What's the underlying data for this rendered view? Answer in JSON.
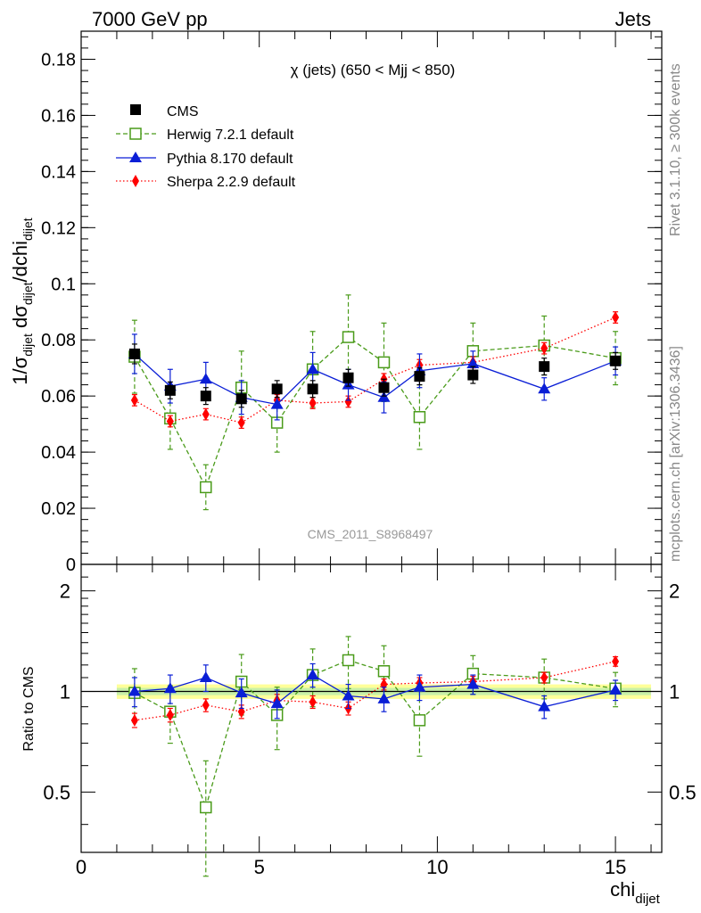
{
  "header": {
    "left": "7000 GeV pp",
    "right": "Jets"
  },
  "side_labels": {
    "rivet": "Rivet 3.1.10, ≥ 300k events",
    "mcplots": "mcplots.cern.ch [arXiv:1306.3436]"
  },
  "chart_data": {
    "type": "scatter",
    "title": "χ (jets) (650 < Mjj <  850)",
    "watermark": "CMS_2011_S8968497",
    "xlabel": "chi",
    "xlabel_sub": "dijet",
    "ylabel": "1/σ_dijet dσ_dijet/dchi_dijet",
    "ratio_ylabel": "Ratio to CMS",
    "xlim": [
      0,
      16.3
    ],
    "ylim": [
      0,
      0.19
    ],
    "ratio_ylim": [
      0.33,
      2.4
    ],
    "ratio_scale": "log",
    "x_ticks": [
      "0",
      "5",
      "10",
      "15"
    ],
    "y_ticks": [
      "0",
      "0.02",
      "0.04",
      "0.06",
      "0.08",
      "0.1",
      "0.12",
      "0.14",
      "0.16",
      "0.18"
    ],
    "ratio_ticks": [
      "0.5",
      "1",
      "2"
    ],
    "legend_position": "top-left",
    "bins": [
      [
        1,
        2
      ],
      [
        2,
        3
      ],
      [
        3,
        4
      ],
      [
        4,
        5
      ],
      [
        5,
        6
      ],
      [
        6,
        7
      ],
      [
        7,
        8
      ],
      [
        8,
        9
      ],
      [
        9,
        10
      ],
      [
        10,
        12
      ],
      [
        12,
        14
      ],
      [
        14,
        16
      ]
    ],
    "x": [
      1.5,
      2.5,
      3.5,
      4.5,
      5.5,
      6.5,
      7.5,
      8.5,
      9.5,
      11,
      13,
      15
    ],
    "series": [
      {
        "name": "CMS",
        "color": "#000000",
        "marker": "square-filled",
        "values": [
          0.075,
          0.062,
          0.06,
          0.059,
          0.0625,
          0.0625,
          0.0665,
          0.063,
          0.067,
          0.0675,
          0.0705,
          0.0725
        ],
        "errors": [
          0.0035,
          0.003,
          0.003,
          0.003,
          0.003,
          0.003,
          0.003,
          0.003,
          0.003,
          0.003,
          0.003,
          0.003
        ]
      },
      {
        "name": "Herwig 7.2.1 default",
        "color": "#4a9b1a",
        "marker": "square-open",
        "line": "dashed",
        "values": [
          0.074,
          0.052,
          0.0275,
          0.063,
          0.0505,
          0.0695,
          0.081,
          0.072,
          0.0525,
          0.076,
          0.078,
          0.0735
        ],
        "errors": [
          0.013,
          0.011,
          0.008,
          0.013,
          0.0105,
          0.0135,
          0.015,
          0.014,
          0.0115,
          0.01,
          0.0105,
          0.0095
        ],
        "ratio": [
          0.99,
          0.87,
          0.45,
          1.07,
          0.85,
          1.12,
          1.24,
          1.15,
          0.82,
          1.13,
          1.1,
          1.02
        ],
        "ratio_errors": [
          0.18,
          0.17,
          0.17,
          0.22,
          0.18,
          0.22,
          0.22,
          0.22,
          0.18,
          0.15,
          0.15,
          0.12
        ]
      },
      {
        "name": "Pythia 8.170 default",
        "color": "#0a1ed6",
        "marker": "triangle-filled",
        "line": "solid",
        "values": [
          0.075,
          0.0635,
          0.066,
          0.0595,
          0.057,
          0.0695,
          0.064,
          0.0595,
          0.069,
          0.0715,
          0.0625,
          0.0725
        ],
        "errors": [
          0.007,
          0.006,
          0.006,
          0.006,
          0.0055,
          0.006,
          0.0055,
          0.0055,
          0.006,
          0.0045,
          0.004,
          0.005
        ],
        "ratio": [
          1.0,
          1.02,
          1.1,
          0.99,
          0.92,
          1.12,
          0.97,
          0.95,
          1.03,
          1.05,
          0.9,
          1.01
        ],
        "ratio_errors": [
          0.1,
          0.1,
          0.1,
          0.1,
          0.09,
          0.09,
          0.08,
          0.08,
          0.09,
          0.07,
          0.07,
          0.07
        ]
      },
      {
        "name": "Sherpa 2.2.9 default",
        "color": "#ff0000",
        "marker": "diamond-filled",
        "line": "dotted",
        "values": [
          0.0585,
          0.051,
          0.0535,
          0.0505,
          0.0585,
          0.0575,
          0.058,
          0.066,
          0.071,
          0.072,
          0.077,
          0.088
        ],
        "errors": [
          0.002,
          0.002,
          0.002,
          0.002,
          0.002,
          0.002,
          0.002,
          0.002,
          0.002,
          0.002,
          0.002,
          0.002
        ],
        "ratio": [
          0.82,
          0.85,
          0.91,
          0.87,
          0.94,
          0.93,
          0.89,
          1.05,
          1.06,
          1.07,
          1.1,
          1.23
        ],
        "ratio_errors": [
          0.04,
          0.04,
          0.04,
          0.04,
          0.04,
          0.04,
          0.04,
          0.04,
          0.04,
          0.04,
          0.04,
          0.04
        ]
      }
    ]
  }
}
